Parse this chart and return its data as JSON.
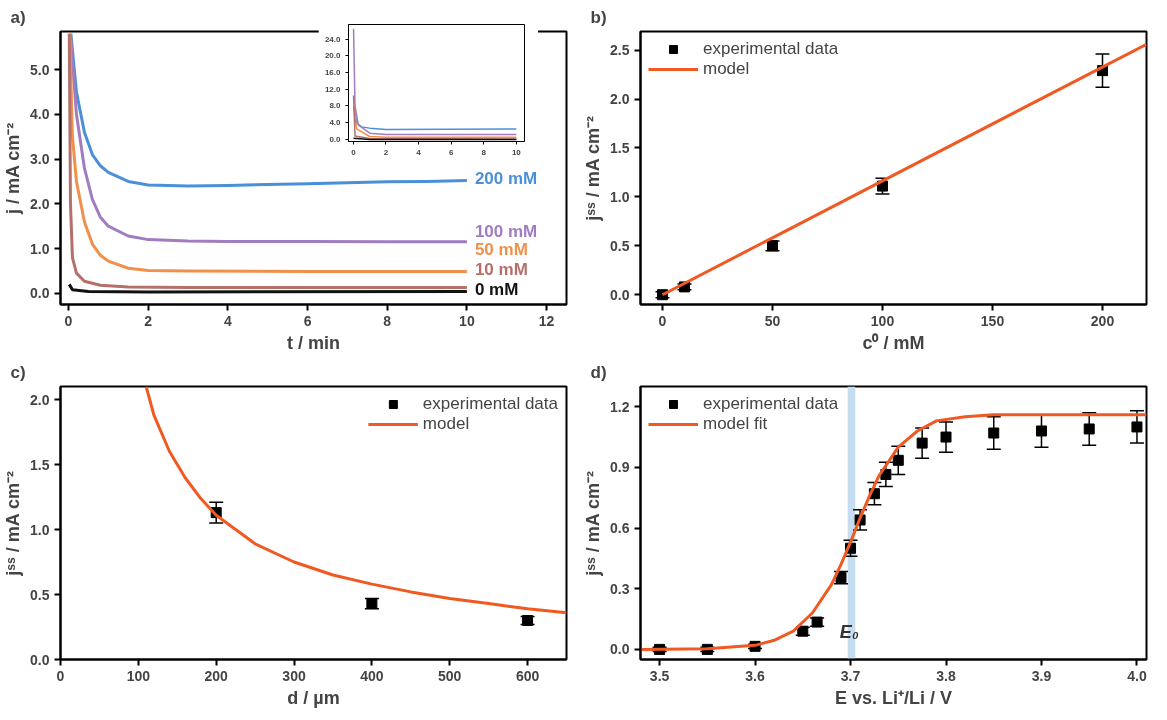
{
  "chart_data": [
    {
      "type": "line",
      "title": "a)",
      "xlabel": "t / min",
      "ylabel": "j / mA cm⁻²",
      "xlim": [
        -0.2,
        12.5
      ],
      "ylim": [
        -0.25,
        5.85
      ],
      "xticks": [
        0,
        2,
        4,
        6,
        8,
        10,
        12
      ],
      "yticks": [
        {
          "value": 0,
          "label": "0.0"
        },
        {
          "value": 1,
          "label": "1.0"
        },
        {
          "value": 2,
          "label": "2.0"
        },
        {
          "value": 3,
          "label": "3.0"
        },
        {
          "value": 4,
          "label": "4.0"
        },
        {
          "value": 5,
          "label": "5.0"
        }
      ],
      "series": [
        {
          "name": "200 mM",
          "color": "#4a90d9",
          "x": [
            0.06,
            0.2,
            0.4,
            0.6,
            0.8,
            1.0,
            1.5,
            2,
            3,
            4,
            5,
            6,
            7,
            8,
            9,
            10
          ],
          "values": [
            5.8,
            4.5,
            3.6,
            3.1,
            2.85,
            2.7,
            2.5,
            2.42,
            2.4,
            2.41,
            2.43,
            2.45,
            2.47,
            2.49,
            2.5,
            2.52
          ]
        },
        {
          "name": "100 mM",
          "color": "#a07cc0",
          "x": [
            0.05,
            0.2,
            0.4,
            0.6,
            0.8,
            1.0,
            1.5,
            2,
            3,
            4,
            6,
            8,
            10
          ],
          "values": [
            5.8,
            4.0,
            2.8,
            2.1,
            1.7,
            1.5,
            1.28,
            1.2,
            1.17,
            1.16,
            1.16,
            1.15,
            1.15
          ]
        },
        {
          "name": "50 mM",
          "color": "#f0904a",
          "x": [
            0.03,
            0.1,
            0.2,
            0.4,
            0.6,
            0.8,
            1,
            1.5,
            2,
            3,
            6,
            10
          ],
          "values": [
            5.8,
            3.5,
            2.5,
            1.6,
            1.1,
            0.85,
            0.72,
            0.56,
            0.51,
            0.5,
            0.49,
            0.49
          ]
        },
        {
          "name": "10 mM",
          "color": "#b5706a",
          "x": [
            0.02,
            0.05,
            0.1,
            0.2,
            0.4,
            0.8,
            1.5,
            3,
            6,
            10
          ],
          "values": [
            5.8,
            2.0,
            0.8,
            0.45,
            0.27,
            0.18,
            0.14,
            0.13,
            0.13,
            0.13
          ]
        },
        {
          "name": "0 mM",
          "color": "#111111",
          "x": [
            0.02,
            0.1,
            0.5,
            2,
            10
          ],
          "values": [
            0.2,
            0.08,
            0.04,
            0.03,
            0.04
          ]
        }
      ]
    },
    {
      "type": "line",
      "xlim": [
        -0.3,
        10.5
      ],
      "ylim": [
        -0.5,
        27.5
      ],
      "xticks": [
        0,
        2,
        4,
        6,
        8,
        10
      ],
      "yticks": [
        {
          "value": 0,
          "label": "0.0"
        },
        {
          "value": 4,
          "label": "4.0"
        },
        {
          "value": 8,
          "label": "8.0"
        },
        {
          "value": 12,
          "label": "12.0"
        },
        {
          "value": 16,
          "label": "16.0"
        },
        {
          "value": 20,
          "label": "20.0"
        },
        {
          "value": 24,
          "label": "24.0"
        }
      ],
      "series": [
        {
          "color": "#4a90d9",
          "x": [
            0.02,
            0.2,
            0.5,
            1,
            2,
            10
          ],
          "values": [
            8,
            4.0,
            3.0,
            2.7,
            2.4,
            2.5
          ]
        },
        {
          "color": "#a07cc0",
          "x": [
            0.01,
            0.1,
            0.3,
            1,
            2,
            10
          ],
          "values": [
            26.5,
            8,
            3.5,
            1.5,
            1.2,
            1.2
          ]
        },
        {
          "color": "#f0904a",
          "x": [
            0.01,
            0.2,
            1,
            2,
            10
          ],
          "values": [
            8,
            2.5,
            0.7,
            0.5,
            0.5
          ]
        },
        {
          "color": "#b5706a",
          "x": [
            0.01,
            0.1,
            1,
            10
          ],
          "values": [
            10.5,
            0.8,
            0.2,
            0.1
          ]
        },
        {
          "color": "#111111",
          "x": [
            0.01,
            1,
            10
          ],
          "values": [
            0.3,
            0.0,
            0.0
          ]
        }
      ]
    },
    {
      "type": "scatter",
      "title": "b)",
      "xlabel": "c⁰ / mM",
      "ylabel": "jˢˢ / mA cm⁻²",
      "xlim": [
        -10,
        220
      ],
      "ylim": [
        -0.1,
        2.69
      ],
      "xticks": [
        0,
        50,
        100,
        150,
        200
      ],
      "yticks": [
        {
          "value": 0,
          "label": "0.0"
        },
        {
          "value": 0.5,
          "label": "0.5"
        },
        {
          "value": 1,
          "label": "1.0"
        },
        {
          "value": 1.5,
          "label": "1.5"
        },
        {
          "value": 2,
          "label": "2.0"
        },
        {
          "value": 2.5,
          "label": "2.5"
        }
      ],
      "legend": "top left",
      "series": [
        {
          "name": "experimental data",
          "marker": "square",
          "color": "#000000",
          "x": [
            0,
            10,
            50,
            100,
            200
          ],
          "values": [
            0.0,
            0.08,
            0.5,
            1.11,
            2.29
          ],
          "errors": [
            0.03,
            0.03,
            0.05,
            0.08,
            0.17
          ]
        },
        {
          "name": "model",
          "type": "line",
          "color": "#f05a22",
          "x": [
            0,
            220
          ],
          "values": [
            0,
            2.56
          ]
        }
      ]
    },
    {
      "type": "scatter",
      "title": "c)",
      "xlabel": "d / µm",
      "ylabel": "jˢˢ / mA cm⁻²",
      "xlim": [
        0,
        650
      ],
      "ylim": [
        0,
        2.1
      ],
      "xticks": [
        0,
        100,
        200,
        300,
        400,
        500,
        600
      ],
      "yticks": [
        {
          "value": 0,
          "label": "0.0"
        },
        {
          "value": 0.5,
          "label": "0.5"
        },
        {
          "value": 1,
          "label": "1.0"
        },
        {
          "value": 1.5,
          "label": "1.5"
        },
        {
          "value": 2,
          "label": "2.0"
        }
      ],
      "legend": "top right",
      "series": [
        {
          "name": "experimental data",
          "marker": "square",
          "color": "#000000",
          "x": [
            200,
            400,
            600
          ],
          "values": [
            1.13,
            0.43,
            0.3
          ],
          "errors": [
            0.08,
            0.04,
            0.03
          ]
        },
        {
          "name": "model",
          "type": "line",
          "color": "#f05a22",
          "x": [
            110,
            120,
            140,
            160,
            180,
            200,
            250,
            300,
            350,
            400,
            450,
            500,
            550,
            600,
            650
          ],
          "values": [
            2.1,
            1.88,
            1.6,
            1.4,
            1.24,
            1.11,
            0.89,
            0.75,
            0.65,
            0.58,
            0.52,
            0.47,
            0.43,
            0.39,
            0.36
          ]
        }
      ]
    },
    {
      "type": "scatter",
      "title": "d)",
      "xlabel": "E vs. Li⁺/Li / V",
      "ylabel": "jˢˢ / mA cm⁻²",
      "xlim": [
        3.48,
        4.01
      ],
      "ylim": [
        -0.05,
        1.3
      ],
      "xticks": [
        {
          "value": 3.5,
          "label": "3.5"
        },
        {
          "value": 3.6,
          "label": "3.6"
        },
        {
          "value": 3.7,
          "label": "3.7"
        },
        {
          "value": 3.8,
          "label": "3.8"
        },
        {
          "value": 3.9,
          "label": "3.9"
        },
        {
          "value": 4.0,
          "label": "4.0"
        }
      ],
      "yticks": [
        {
          "value": 0,
          "label": "0.0"
        },
        {
          "value": 0.3,
          "label": "0.3"
        },
        {
          "value": 0.6,
          "label": "0.6"
        },
        {
          "value": 0.9,
          "label": "0.9"
        },
        {
          "value": 1.2,
          "label": "1.2"
        }
      ],
      "legend": "top left",
      "bands": [
        {
          "axis": "x",
          "from": 3.697,
          "to": 3.705,
          "label": "E₀",
          "color": "#c6dcf0"
        }
      ],
      "series": [
        {
          "name": "experimental data",
          "marker": "square",
          "color": "#000000",
          "x": [
            3.5,
            3.55,
            3.6,
            3.65,
            3.665,
            3.69,
            3.7,
            3.71,
            3.725,
            3.737,
            3.75,
            3.775,
            3.8,
            3.85,
            3.9,
            3.95,
            4.0
          ],
          "values": [
            0,
            0,
            0.015,
            0.09,
            0.135,
            0.355,
            0.5,
            0.64,
            0.77,
            0.865,
            0.935,
            1.02,
            1.05,
            1.07,
            1.08,
            1.09,
            1.1
          ],
          "errors": [
            0.01,
            0.01,
            0.01,
            0.02,
            0.02,
            0.03,
            0.04,
            0.05,
            0.055,
            0.06,
            0.07,
            0.075,
            0.075,
            0.08,
            0.08,
            0.08,
            0.08
          ]
        },
        {
          "name": "model fit",
          "type": "line",
          "color": "#f05a22",
          "x": [
            3.48,
            3.55,
            3.6,
            3.62,
            3.64,
            3.66,
            3.68,
            3.69,
            3.7,
            3.71,
            3.72,
            3.73,
            3.75,
            3.77,
            3.79,
            3.82,
            3.85,
            4.01
          ],
          "values": [
            0,
            0.003,
            0.02,
            0.045,
            0.09,
            0.18,
            0.32,
            0.42,
            0.53,
            0.65,
            0.76,
            0.86,
            1.0,
            1.08,
            1.13,
            1.15,
            1.16,
            1.16
          ]
        }
      ]
    }
  ]
}
